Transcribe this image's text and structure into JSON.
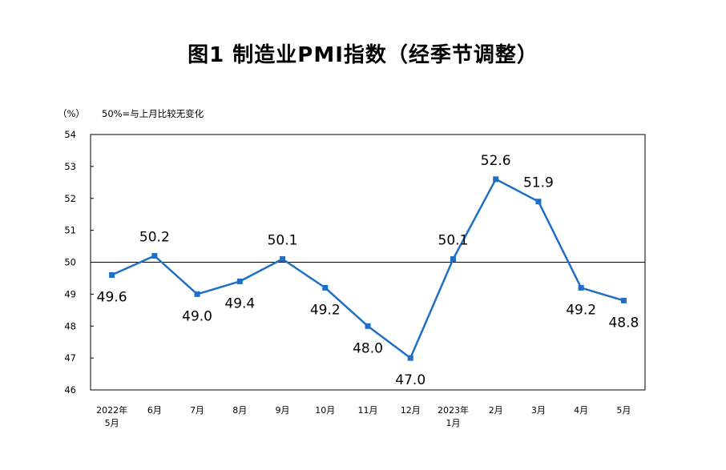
{
  "chart_data": {
    "type": "line",
    "title": "图1 制造业PMI指数（经季节调整）",
    "unit_label": "（%）",
    "note": "50%=与上月比较无变化",
    "categories": [
      [
        "2022年",
        "5月"
      ],
      [
        "6月"
      ],
      [
        "7月"
      ],
      [
        "8月"
      ],
      [
        "9月"
      ],
      [
        "10月"
      ],
      [
        "11月"
      ],
      [
        "12月"
      ],
      [
        "2023年",
        "1月"
      ],
      [
        "2月"
      ],
      [
        "3月"
      ],
      [
        "4月"
      ],
      [
        "5月"
      ]
    ],
    "values": [
      49.6,
      50.2,
      49.0,
      49.4,
      50.1,
      49.2,
      48.0,
      47.0,
      50.1,
      52.6,
      51.9,
      49.2,
      48.8
    ],
    "data_labels": [
      "49.6",
      "50.2",
      "49.0",
      "49.4",
      "50.1",
      "49.2",
      "48.0",
      "47.0",
      "50.1",
      "52.6",
      "51.9",
      "49.2",
      "48.8"
    ],
    "label_positions": [
      "below",
      "above",
      "below",
      "below",
      "above",
      "below",
      "below",
      "below",
      "above",
      "above",
      "above",
      "below",
      "below"
    ],
    "ylim": [
      46,
      54
    ],
    "yticks": [
      "46",
      "47",
      "48",
      "49",
      "50",
      "51",
      "52",
      "53",
      "54"
    ],
    "reference_line": 50,
    "line_color": "#1f6fc4",
    "grid": false
  }
}
